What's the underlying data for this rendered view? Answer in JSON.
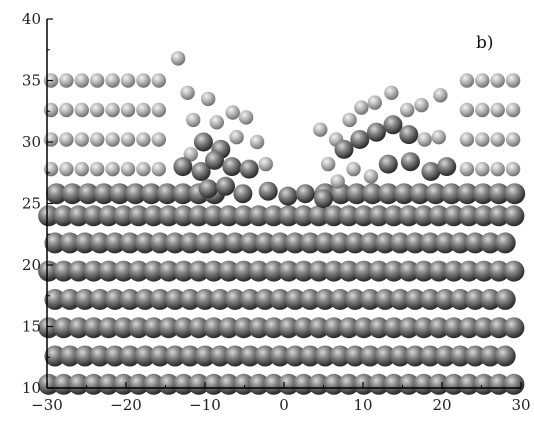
{
  "panel_label": "b)",
  "chart_data": {
    "type": "scatter",
    "xlim": [
      -30,
      30
    ],
    "ylim": [
      10,
      40
    ],
    "x_ticks": [
      "−30",
      "−20",
      "−10",
      "0",
      "10",
      "20",
      "30"
    ],
    "y_ticks": [
      "40",
      "35",
      "30",
      "25",
      "20",
      "15",
      "10"
    ],
    "grid": false,
    "substrate_layers": [
      {
        "y": 10.3,
        "x_start": -29.8,
        "x_end": 29.8,
        "spacing": 1.9
      },
      {
        "y": 12.6,
        "x_start": -29.0,
        "x_end": 29.8,
        "spacing": 1.9
      },
      {
        "y": 14.9,
        "x_start": -29.8,
        "x_end": 29.8,
        "spacing": 1.9
      },
      {
        "y": 17.2,
        "x_start": -29.0,
        "x_end": 29.8,
        "spacing": 1.9
      },
      {
        "y": 19.5,
        "x_start": -29.8,
        "x_end": 29.8,
        "spacing": 1.9
      },
      {
        "y": 21.8,
        "x_start": -29.0,
        "x_end": 29.8,
        "spacing": 1.9
      },
      {
        "y": 24.0,
        "x_start": -29.8,
        "x_end": 29.8,
        "spacing": 1.9
      }
    ],
    "surface_layer": {
      "y": 25.8,
      "x_start": -28.8,
      "x_end": 29.6,
      "spacing": 2.0
    },
    "adatom_layers": [
      {
        "y": 27.8,
        "x_start": -29.5,
        "x_end": 29.5,
        "spacing": 1.95
      },
      {
        "y": 30.2,
        "x_start": -29.5,
        "x_end": 29.5,
        "spacing": 1.95
      },
      {
        "y": 32.6,
        "x_start": -29.5,
        "x_end": 29.5,
        "spacing": 1.95
      },
      {
        "y": 35.0,
        "x_start": -29.5,
        "x_end": 29.5,
        "spacing": 1.95
      }
    ],
    "crater_x_range": [
      -9.0,
      6.0
    ],
    "disordered_atoms": [
      {
        "x": -13.4,
        "y": 36.8,
        "kind": "light"
      },
      {
        "x": -12.2,
        "y": 34.0,
        "kind": "light"
      },
      {
        "x": -9.6,
        "y": 33.5,
        "kind": "light"
      },
      {
        "x": -11.5,
        "y": 31.8,
        "kind": "light"
      },
      {
        "x": -8.5,
        "y": 31.6,
        "kind": "light"
      },
      {
        "x": -6.5,
        "y": 32.4,
        "kind": "light"
      },
      {
        "x": -4.8,
        "y": 32.0,
        "kind": "light"
      },
      {
        "x": -10.2,
        "y": 30.0,
        "kind": "dark"
      },
      {
        "x": -8.0,
        "y": 29.4,
        "kind": "dark"
      },
      {
        "x": -11.8,
        "y": 29.0,
        "kind": "light"
      },
      {
        "x": -6.0,
        "y": 30.4,
        "kind": "light"
      },
      {
        "x": -3.4,
        "y": 30.0,
        "kind": "light"
      },
      {
        "x": -12.8,
        "y": 28.0,
        "kind": "dark"
      },
      {
        "x": -10.5,
        "y": 27.6,
        "kind": "dark"
      },
      {
        "x": -8.8,
        "y": 28.5,
        "kind": "dark"
      },
      {
        "x": -6.6,
        "y": 28.0,
        "kind": "dark"
      },
      {
        "x": -4.4,
        "y": 27.8,
        "kind": "dark"
      },
      {
        "x": -2.3,
        "y": 28.2,
        "kind": "light"
      },
      {
        "x": -9.6,
        "y": 26.2,
        "kind": "dark"
      },
      {
        "x": -7.4,
        "y": 26.4,
        "kind": "dark"
      },
      {
        "x": -5.2,
        "y": 25.8,
        "kind": "dark"
      },
      {
        "x": -2.0,
        "y": 26.0,
        "kind": "dark"
      },
      {
        "x": 0.5,
        "y": 25.6,
        "kind": "dark"
      },
      {
        "x": 2.7,
        "y": 25.8,
        "kind": "dark"
      },
      {
        "x": 5.0,
        "y": 25.4,
        "kind": "dark"
      },
      {
        "x": 4.6,
        "y": 31.0,
        "kind": "light"
      },
      {
        "x": 6.6,
        "y": 30.2,
        "kind": "light"
      },
      {
        "x": 8.3,
        "y": 31.8,
        "kind": "light"
      },
      {
        "x": 9.8,
        "y": 32.8,
        "kind": "light"
      },
      {
        "x": 11.5,
        "y": 33.2,
        "kind": "light"
      },
      {
        "x": 13.6,
        "y": 34.0,
        "kind": "light"
      },
      {
        "x": 15.6,
        "y": 32.6,
        "kind": "light"
      },
      {
        "x": 17.4,
        "y": 33.0,
        "kind": "light"
      },
      {
        "x": 19.8,
        "y": 33.8,
        "kind": "light"
      },
      {
        "x": 7.6,
        "y": 29.4,
        "kind": "dark"
      },
      {
        "x": 9.6,
        "y": 30.2,
        "kind": "dark"
      },
      {
        "x": 11.7,
        "y": 30.8,
        "kind": "dark"
      },
      {
        "x": 13.8,
        "y": 31.4,
        "kind": "dark"
      },
      {
        "x": 15.8,
        "y": 30.6,
        "kind": "dark"
      },
      {
        "x": 17.8,
        "y": 30.2,
        "kind": "light"
      },
      {
        "x": 19.6,
        "y": 30.4,
        "kind": "light"
      },
      {
        "x": 5.6,
        "y": 28.2,
        "kind": "light"
      },
      {
        "x": 8.8,
        "y": 27.8,
        "kind": "light"
      },
      {
        "x": 13.2,
        "y": 28.2,
        "kind": "dark"
      },
      {
        "x": 16.0,
        "y": 28.4,
        "kind": "dark"
      },
      {
        "x": 18.6,
        "y": 27.6,
        "kind": "dark"
      },
      {
        "x": 20.6,
        "y": 28.0,
        "kind": "dark"
      },
      {
        "x": 6.8,
        "y": 26.8,
        "kind": "light"
      },
      {
        "x": 11.0,
        "y": 27.2,
        "kind": "light"
      }
    ]
  }
}
